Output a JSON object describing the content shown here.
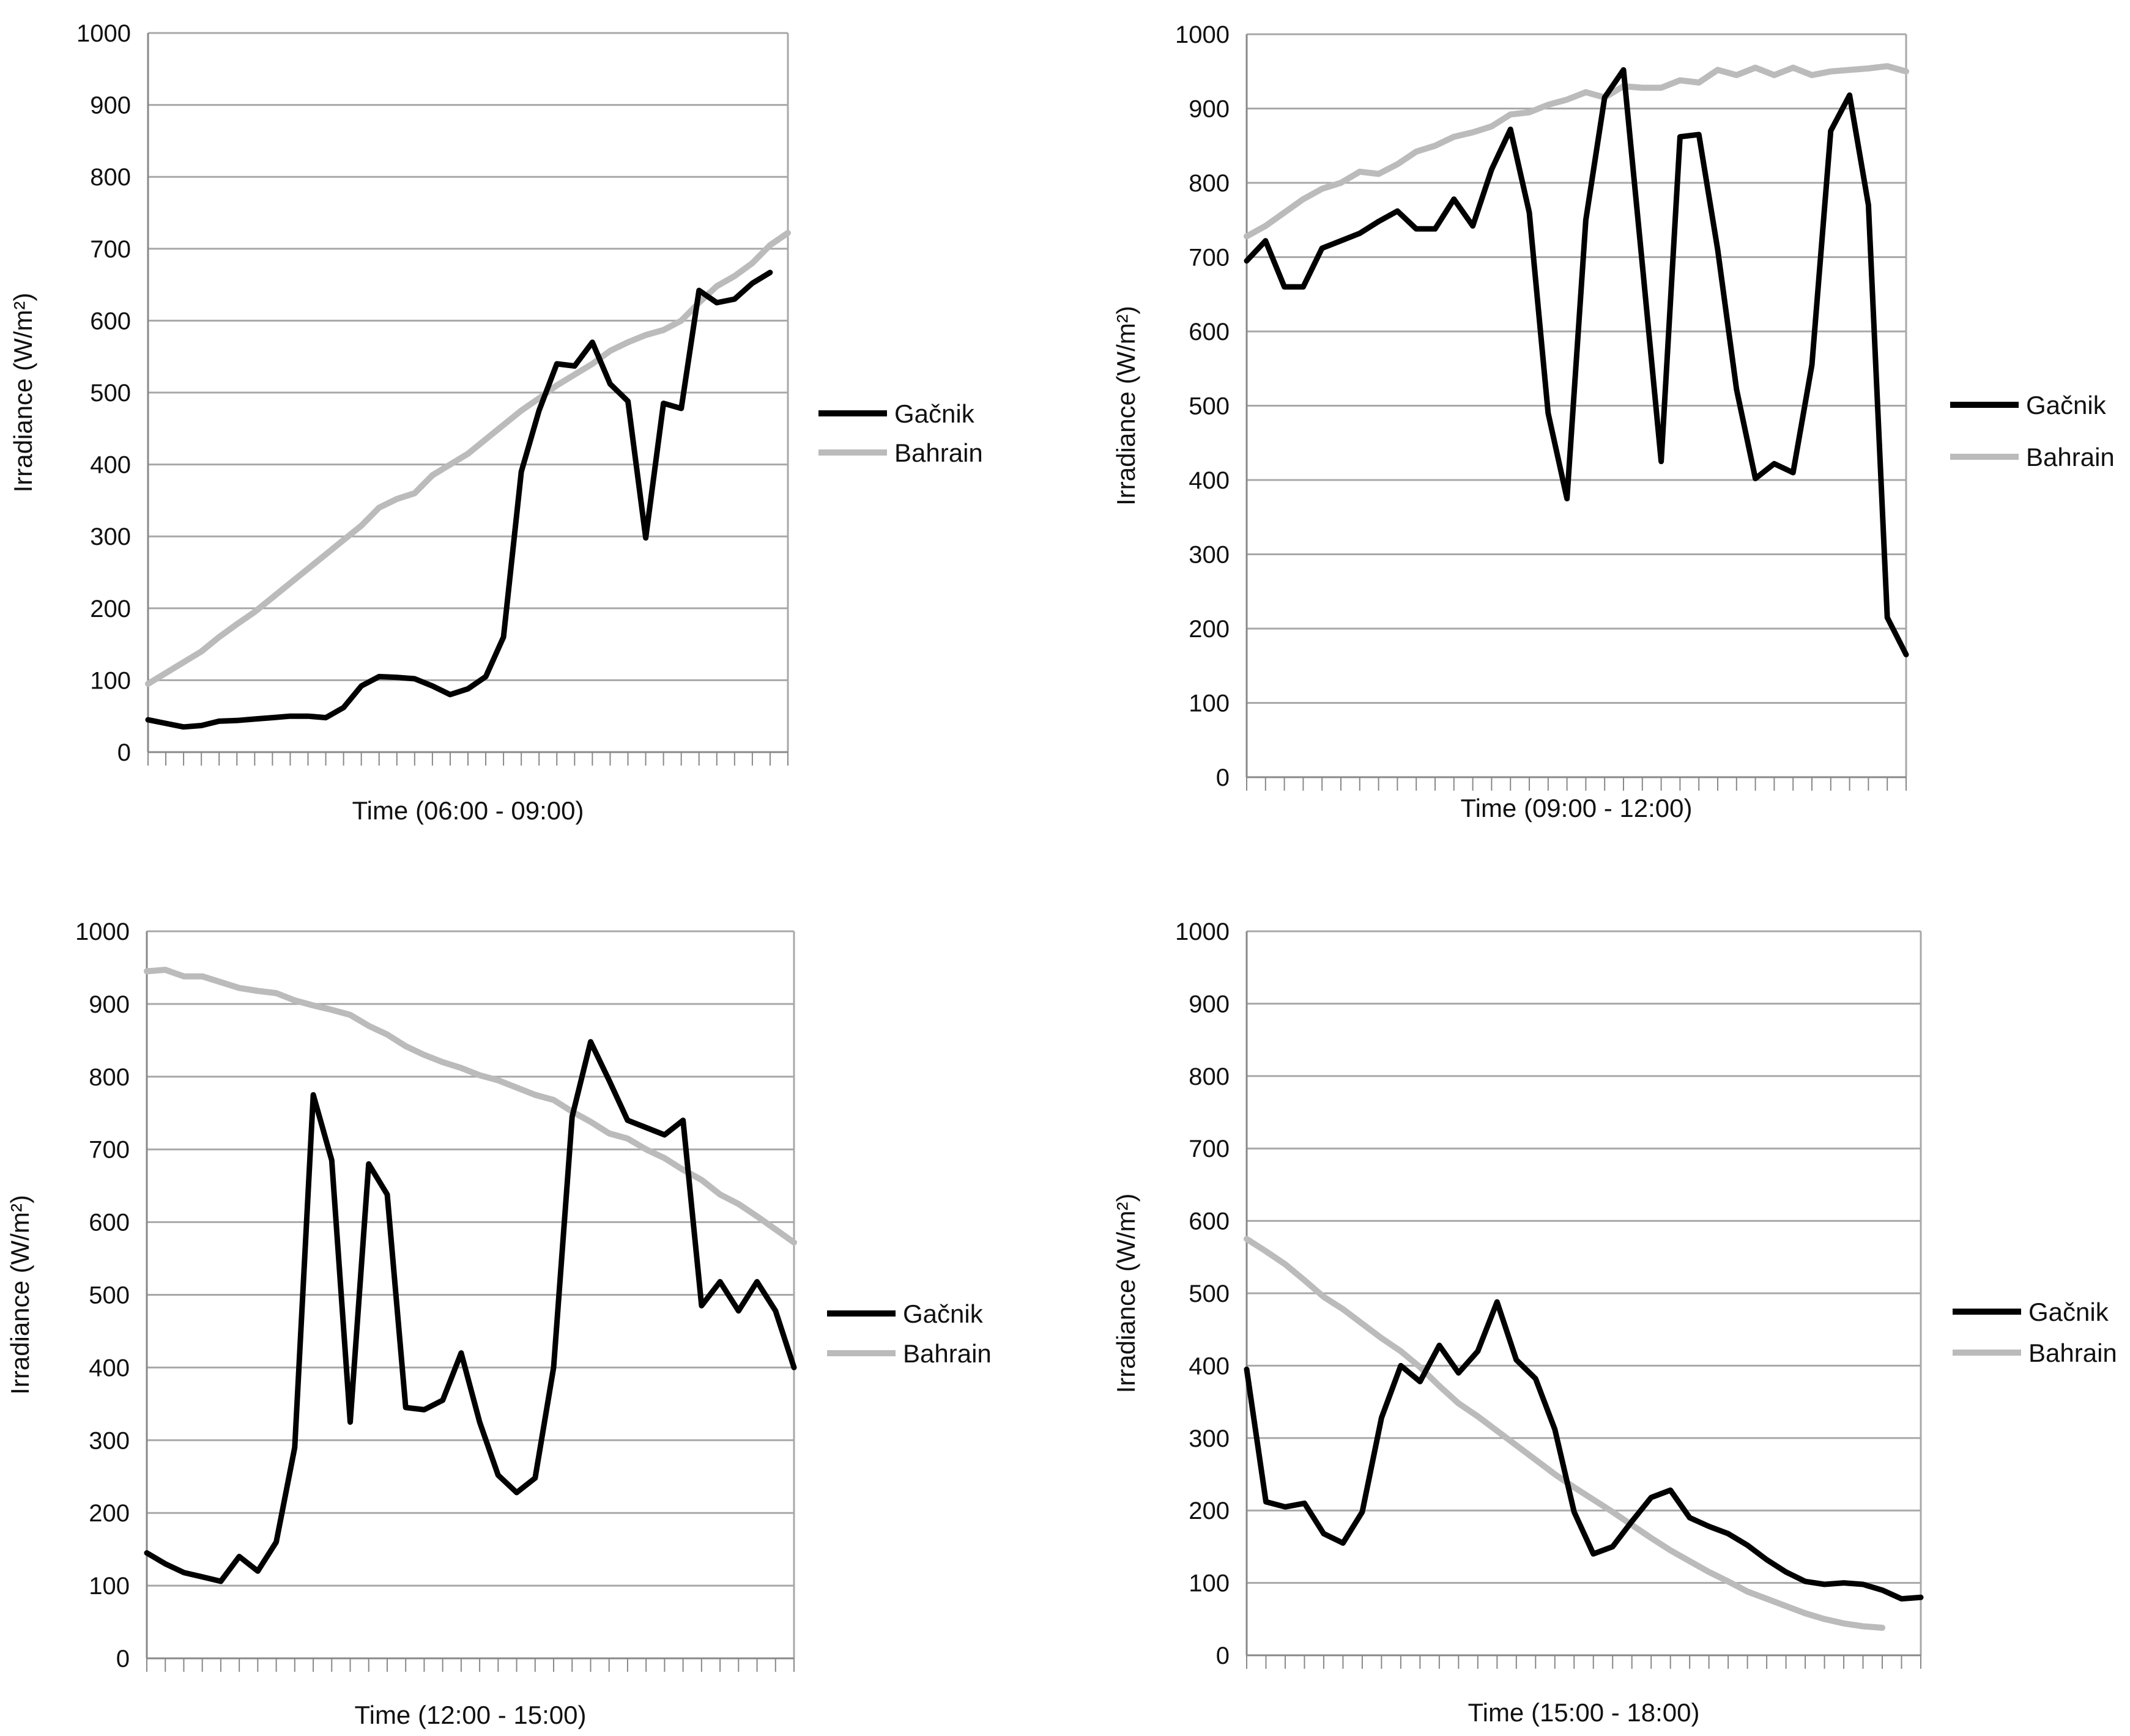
{
  "chart_data": [
    {
      "type": "line",
      "xlabel": "Time (06:00 - 09:00)",
      "ylabel": "Irradiance (W/m²)",
      "ylim": [
        0,
        1000
      ],
      "yticks": [
        "0",
        "100",
        "200",
        "300",
        "400",
        "500",
        "600",
        "700",
        "800",
        "900",
        "1000"
      ],
      "grid": true,
      "legend_position": "right",
      "series": [
        {
          "name": "Gačnik",
          "color": "#000000",
          "values": [
            45,
            40,
            35,
            37,
            43,
            44,
            46,
            48,
            50,
            50,
            48,
            62,
            92,
            105,
            104,
            102,
            92,
            80,
            88,
            105,
            160,
            390,
            475,
            540,
            537,
            570,
            512,
            488,
            298,
            485,
            478,
            642,
            625,
            630,
            652,
            667
          ]
        },
        {
          "name": "Bahrain",
          "color": "#bbbbbb",
          "values": [
            95,
            110,
            125,
            140,
            160,
            178,
            195,
            215,
            235,
            255,
            275,
            295,
            315,
            340,
            352,
            360,
            385,
            400,
            415,
            435,
            455,
            475,
            492,
            510,
            525,
            540,
            558,
            570,
            580,
            587,
            600,
            625,
            648,
            662,
            680,
            705,
            722
          ]
        }
      ]
    },
    {
      "type": "line",
      "xlabel": "Time (09:00 - 12:00)",
      "ylabel": "Irradiance (W/m²)",
      "ylim": [
        0,
        1000
      ],
      "yticks": [
        "0",
        "100",
        "200",
        "300",
        "400",
        "500",
        "600",
        "700",
        "800",
        "900",
        "1000"
      ],
      "grid": true,
      "legend_position": "right",
      "series": [
        {
          "name": "Gačnik",
          "color": "#000000",
          "values": [
            695,
            722,
            660,
            660,
            712,
            722,
            732,
            748,
            762,
            738,
            738,
            778,
            742,
            818,
            872,
            760,
            490,
            375,
            750,
            915,
            952,
            690,
            425,
            862,
            865,
            710,
            522,
            402,
            422,
            410,
            555,
            870,
            918,
            770,
            215,
            165
          ]
        },
        {
          "name": "Bahrain",
          "color": "#bbbbbb",
          "values": [
            728,
            742,
            760,
            778,
            792,
            800,
            815,
            812,
            825,
            842,
            850,
            862,
            868,
            876,
            892,
            895,
            905,
            912,
            922,
            915,
            930,
            928,
            928,
            938,
            935,
            952,
            945,
            955,
            945,
            955,
            945,
            950,
            952,
            954,
            957,
            950
          ]
        }
      ]
    },
    {
      "type": "line",
      "xlabel": "Time (12:00 - 15:00)",
      "ylabel": "Irradiance (W/m²)",
      "ylim": [
        0,
        1000
      ],
      "yticks": [
        "0",
        "100",
        "200",
        "300",
        "400",
        "500",
        "600",
        "700",
        "800",
        "900",
        "1000"
      ],
      "grid": true,
      "legend_position": "right",
      "series": [
        {
          "name": "Gačnik",
          "color": "#000000",
          "values": [
            145,
            130,
            118,
            112,
            106,
            140,
            120,
            160,
            290,
            775,
            685,
            325,
            680,
            638,
            345,
            342,
            355,
            420,
            325,
            252,
            228,
            248,
            400,
            745,
            848,
            795,
            740,
            730,
            720,
            740,
            485,
            518,
            478,
            518,
            478,
            400
          ]
        },
        {
          "name": "Bahrain",
          "color": "#bbbbbb",
          "values": [
            945,
            947,
            938,
            938,
            930,
            922,
            918,
            915,
            905,
            898,
            892,
            885,
            870,
            858,
            842,
            830,
            820,
            812,
            802,
            795,
            785,
            775,
            768,
            752,
            738,
            722,
            715,
            700,
            688,
            672,
            658,
            638,
            625,
            608,
            590,
            572
          ]
        }
      ]
    },
    {
      "type": "line",
      "xlabel": "Time (15:00 - 18:00)",
      "ylabel": "Irradiance (W/m²)",
      "ylim": [
        0,
        1000
      ],
      "yticks": [
        "0",
        "100",
        "200",
        "300",
        "400",
        "500",
        "600",
        "700",
        "800",
        "900",
        "1000"
      ],
      "grid": true,
      "legend_position": "right",
      "series": [
        {
          "name": "Gačnik",
          "color": "#000000",
          "values": [
            395,
            212,
            205,
            210,
            168,
            155,
            198,
            328,
            400,
            378,
            428,
            390,
            420,
            488,
            408,
            382,
            312,
            198,
            140,
            150,
            185,
            218,
            228,
            190,
            178,
            168,
            152,
            132,
            115,
            102,
            98,
            100,
            98,
            90,
            78,
            80
          ]
        },
        {
          "name": "Bahrain",
          "color": "#bbbbbb",
          "values": [
            575,
            558,
            540,
            518,
            495,
            478,
            458,
            438,
            420,
            398,
            372,
            348,
            330,
            310,
            290,
            270,
            250,
            232,
            215,
            198,
            180,
            162,
            145,
            130,
            115,
            102,
            88,
            78,
            68,
            58,
            50,
            44,
            40,
            38
          ]
        }
      ]
    }
  ]
}
